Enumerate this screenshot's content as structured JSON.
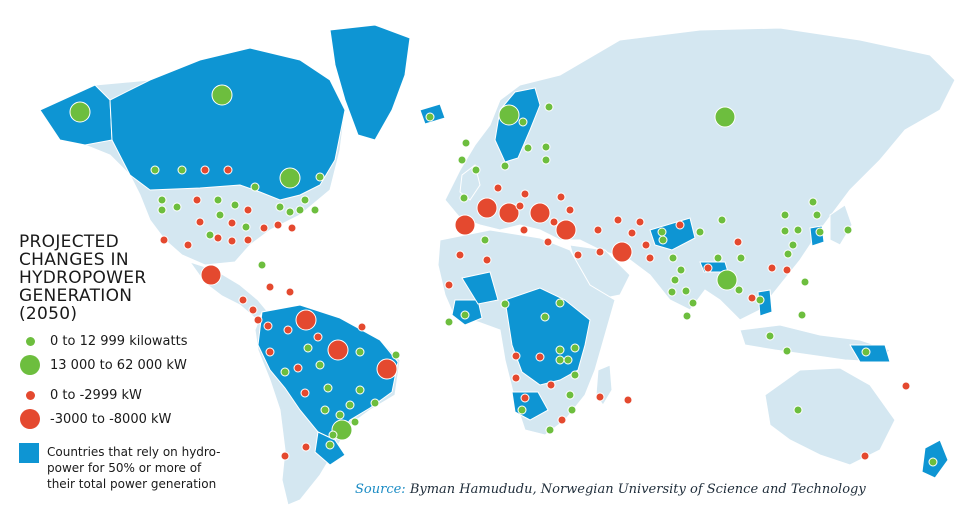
{
  "colors": {
    "land": "#d4e7f1",
    "hydro_dependent": "#0e95d3",
    "increase": "#6dbe3e",
    "decrease": "#e4492f"
  },
  "legend": {
    "title_lines": [
      "PROJECTED",
      "CHANGES IN",
      "HYDROPOWER",
      "GENERATION",
      "(2050)"
    ],
    "small_increase": "0 to 12 999 kilowatts",
    "large_increase": "13 000 to 62 000 kW",
    "small_decrease": "0 to -2999 kW",
    "large_decrease": "-3000 to -8000 kW",
    "hydro_countries_lines": [
      "Countries that rely on hydro-",
      "power for 50% or more of",
      "their total power generation"
    ]
  },
  "source": {
    "label": "Source:",
    "text": "Byman Hamududu, Norwegian University of Science and Technology"
  },
  "markers": {
    "legend_categories": [
      "small_increase",
      "large_increase",
      "small_decrease",
      "large_decrease"
    ]
  }
}
